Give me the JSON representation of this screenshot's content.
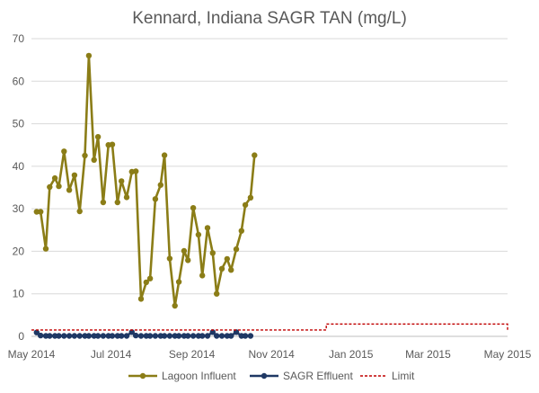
{
  "chart_data": {
    "type": "line",
    "title": "Kennard, Indiana SAGR TAN (mg/L)",
    "xlabel": "",
    "ylabel": "",
    "ylim": [
      0,
      70
    ],
    "yticks": [
      0,
      10,
      20,
      30,
      40,
      50,
      60,
      70
    ],
    "xlim": [
      "2014-05-01",
      "2015-05-01"
    ],
    "xticks": [
      {
        "date": "2014-05-01",
        "label": "May 2014"
      },
      {
        "date": "2014-07-01",
        "label": "Jul 2014"
      },
      {
        "date": "2014-09-01",
        "label": "Sep 2014"
      },
      {
        "date": "2014-11-01",
        "label": "Nov 2014"
      },
      {
        "date": "2015-01-01",
        "label": "Jan 2015"
      },
      {
        "date": "2015-03-01",
        "label": "Mar 2015"
      },
      {
        "date": "2015-05-01",
        "label": "May 2015"
      }
    ],
    "grid": "horizontal",
    "legend_position": "bottom",
    "series": [
      {
        "name": "Lagoon Influent",
        "color": "#8B7D17",
        "style": "line-markers",
        "points": [
          [
            "2014-05-05",
            29.3
          ],
          [
            "2014-05-08",
            29.3
          ],
          [
            "2014-05-12",
            20.6
          ],
          [
            "2014-05-15",
            35.1
          ],
          [
            "2014-05-19",
            37.2
          ],
          [
            "2014-05-22",
            35.3
          ],
          [
            "2014-05-26",
            43.5
          ],
          [
            "2014-05-30",
            34.4
          ],
          [
            "2014-06-03",
            37.9
          ],
          [
            "2014-06-07",
            29.4
          ],
          [
            "2014-06-11",
            42.5
          ],
          [
            "2014-06-14",
            66.0
          ],
          [
            "2014-06-18",
            41.5
          ],
          [
            "2014-06-21",
            46.9
          ],
          [
            "2014-06-25",
            31.5
          ],
          [
            "2014-06-29",
            45.0
          ],
          [
            "2014-07-02",
            45.1
          ],
          [
            "2014-07-06",
            31.5
          ],
          [
            "2014-07-09",
            36.5
          ],
          [
            "2014-07-13",
            32.7
          ],
          [
            "2014-07-17",
            38.7
          ],
          [
            "2014-07-20",
            38.8
          ],
          [
            "2014-07-24",
            8.8
          ],
          [
            "2014-07-28",
            12.7
          ],
          [
            "2014-07-31",
            13.6
          ],
          [
            "2014-08-04",
            32.3
          ],
          [
            "2014-08-08",
            35.6
          ],
          [
            "2014-08-11",
            42.6
          ],
          [
            "2014-08-15",
            18.3
          ],
          [
            "2014-08-19",
            7.2
          ],
          [
            "2014-08-22",
            12.8
          ],
          [
            "2014-08-26",
            20.1
          ],
          [
            "2014-08-29",
            17.9
          ],
          [
            "2014-09-02",
            30.2
          ],
          [
            "2014-09-06",
            23.9
          ],
          [
            "2014-09-09",
            14.3
          ],
          [
            "2014-09-13",
            25.5
          ],
          [
            "2014-09-17",
            19.6
          ],
          [
            "2014-09-20",
            10.0
          ],
          [
            "2014-09-24",
            15.9
          ],
          [
            "2014-09-28",
            18.2
          ],
          [
            "2014-10-01",
            15.6
          ],
          [
            "2014-10-05",
            20.5
          ],
          [
            "2014-10-09",
            24.8
          ],
          [
            "2014-10-12",
            30.9
          ],
          [
            "2014-10-16",
            32.6
          ],
          [
            "2014-10-19",
            42.6
          ]
        ]
      },
      {
        "name": "SAGR Effluent",
        "color": "#1F3864",
        "style": "line-markers",
        "points": [
          [
            "2014-05-05",
            0.9
          ],
          [
            "2014-05-08",
            0.2
          ],
          [
            "2014-05-12",
            0.1
          ],
          [
            "2014-05-15",
            0.1
          ],
          [
            "2014-05-19",
            0.1
          ],
          [
            "2014-05-22",
            0.1
          ],
          [
            "2014-05-26",
            0.1
          ],
          [
            "2014-05-30",
            0.1
          ],
          [
            "2014-06-03",
            0.1
          ],
          [
            "2014-06-07",
            0.1
          ],
          [
            "2014-06-11",
            0.1
          ],
          [
            "2014-06-14",
            0.1
          ],
          [
            "2014-06-18",
            0.1
          ],
          [
            "2014-06-21",
            0.1
          ],
          [
            "2014-06-25",
            0.1
          ],
          [
            "2014-06-29",
            0.1
          ],
          [
            "2014-07-02",
            0.1
          ],
          [
            "2014-07-06",
            0.1
          ],
          [
            "2014-07-09",
            0.1
          ],
          [
            "2014-07-13",
            0.1
          ],
          [
            "2014-07-17",
            1.0
          ],
          [
            "2014-07-20",
            0.2
          ],
          [
            "2014-07-24",
            0.1
          ],
          [
            "2014-07-28",
            0.1
          ],
          [
            "2014-07-31",
            0.1
          ],
          [
            "2014-08-04",
            0.1
          ],
          [
            "2014-08-08",
            0.1
          ],
          [
            "2014-08-11",
            0.1
          ],
          [
            "2014-08-15",
            0.1
          ],
          [
            "2014-08-19",
            0.1
          ],
          [
            "2014-08-22",
            0.1
          ],
          [
            "2014-08-26",
            0.1
          ],
          [
            "2014-08-29",
            0.1
          ],
          [
            "2014-09-02",
            0.1
          ],
          [
            "2014-09-06",
            0.1
          ],
          [
            "2014-09-09",
            0.1
          ],
          [
            "2014-09-13",
            0.1
          ],
          [
            "2014-09-17",
            1.0
          ],
          [
            "2014-09-20",
            0.1
          ],
          [
            "2014-09-24",
            0.1
          ],
          [
            "2014-09-28",
            0.1
          ],
          [
            "2014-10-01",
            0.1
          ],
          [
            "2014-10-05",
            1.0
          ],
          [
            "2014-10-09",
            0.1
          ],
          [
            "2014-10-12",
            0.1
          ],
          [
            "2014-10-16",
            0.1
          ]
        ]
      },
      {
        "name": "Limit",
        "color": "#C00000",
        "style": "dashed-step",
        "points": [
          [
            "2014-05-01",
            1.5
          ],
          [
            "2014-12-13",
            1.5
          ],
          [
            "2014-12-13",
            2.9
          ],
          [
            "2015-05-01",
            2.9
          ],
          [
            "2015-05-01",
            1.5
          ]
        ]
      }
    ]
  }
}
